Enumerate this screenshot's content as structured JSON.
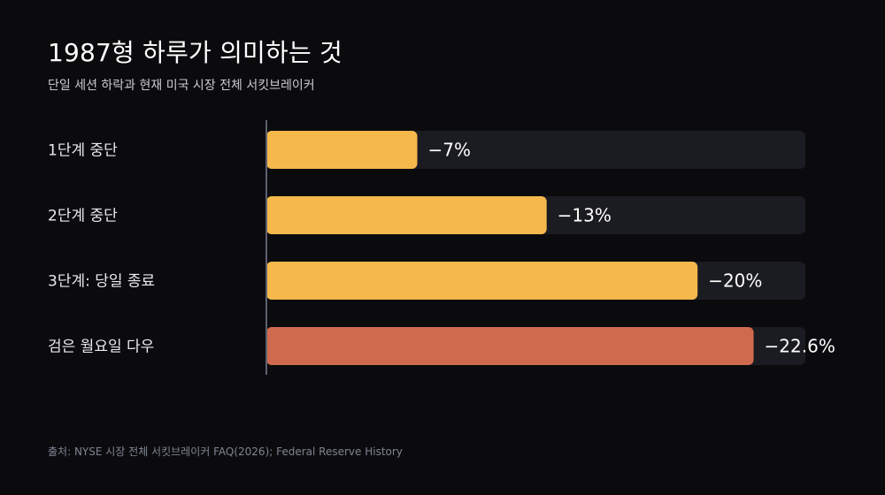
{
  "header": {
    "title": "1987형 하루가 의미하는 것",
    "subtitle": "단일 세션 하락과 현재 미국 시장 전체 서킷브레이커"
  },
  "chart_data": {
    "type": "bar",
    "orientation": "horizontal",
    "categories": [
      "1단계 중단",
      "2단계 중단",
      "3단계: 당일 종료",
      "검은 월요일 다우"
    ],
    "values": [
      -7,
      -13,
      -20,
      -22.6
    ],
    "value_labels": [
      "−7%",
      "−13%",
      "−20%",
      "−22.6%"
    ],
    "xlim": [
      0,
      -25
    ],
    "colors": [
      "#f5b84b",
      "#f5b84b",
      "#f5b84b",
      "#d06a4e"
    ],
    "track_color": "#1b1c21",
    "grid": false,
    "legend": "none"
  },
  "footer": {
    "source": "출처: NYSE 시장 전체 서킷브레이커 FAQ(2026); Federal Reserve History"
  }
}
